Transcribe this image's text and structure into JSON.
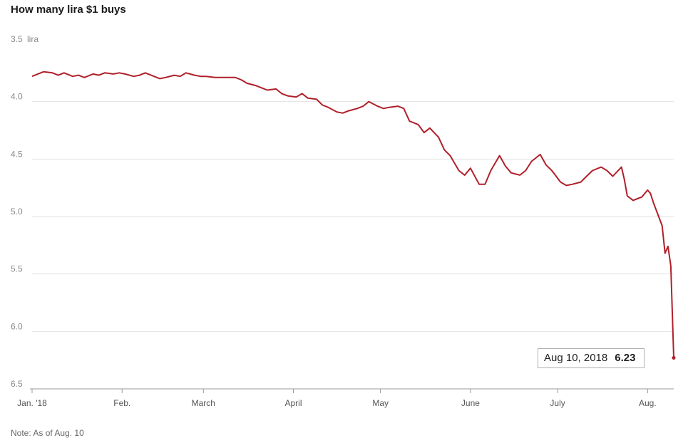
{
  "title": "How many lira $1 buys",
  "note": "Note: As of Aug. 10",
  "colors": {
    "line": "#b0202a",
    "grid": "#e2e2e2"
  },
  "callout": {
    "date": "Aug 10, 2018",
    "value": "6.23"
  },
  "chart_data": {
    "type": "line",
    "title": "How many lira $1 buys",
    "y_unit_label": "lira",
    "ylim": [
      3.5,
      6.5
    ],
    "y_inverted": true,
    "y_ticks": [
      {
        "value": 3.5,
        "label": "3.5"
      },
      {
        "value": 4.0,
        "label": "4.0"
      },
      {
        "value": 4.5,
        "label": "4.5"
      },
      {
        "value": 5.0,
        "label": "5.0"
      },
      {
        "value": 5.5,
        "label": "5.5"
      },
      {
        "value": 6.0,
        "label": "6.0"
      },
      {
        "value": 6.5,
        "label": "6.5"
      }
    ],
    "x_ticks": [
      {
        "date": "2018-01-01",
        "label": "Jan. '18"
      },
      {
        "date": "2018-02-01",
        "label": "Feb."
      },
      {
        "date": "2018-03-01",
        "label": "March"
      },
      {
        "date": "2018-04-01",
        "label": "April"
      },
      {
        "date": "2018-05-01",
        "label": "May"
      },
      {
        "date": "2018-06-01",
        "label": "June"
      },
      {
        "date": "2018-07-01",
        "label": "July"
      },
      {
        "date": "2018-08-01",
        "label": "Aug."
      }
    ],
    "xlim": [
      "2018-01-01",
      "2018-08-10"
    ],
    "grid": true,
    "series": [
      {
        "points": [
          [
            "2018-01-01",
            3.78
          ],
          [
            "2018-01-03",
            3.76
          ],
          [
            "2018-01-05",
            3.74
          ],
          [
            "2018-01-08",
            3.75
          ],
          [
            "2018-01-10",
            3.77
          ],
          [
            "2018-01-12",
            3.75
          ],
          [
            "2018-01-15",
            3.78
          ],
          [
            "2018-01-17",
            3.77
          ],
          [
            "2018-01-19",
            3.79
          ],
          [
            "2018-01-22",
            3.76
          ],
          [
            "2018-01-24",
            3.77
          ],
          [
            "2018-01-26",
            3.75
          ],
          [
            "2018-01-29",
            3.76
          ],
          [
            "2018-01-31",
            3.75
          ],
          [
            "2018-02-02",
            3.76
          ],
          [
            "2018-02-05",
            3.78
          ],
          [
            "2018-02-07",
            3.77
          ],
          [
            "2018-02-09",
            3.75
          ],
          [
            "2018-02-12",
            3.78
          ],
          [
            "2018-02-14",
            3.8
          ],
          [
            "2018-02-16",
            3.79
          ],
          [
            "2018-02-19",
            3.77
          ],
          [
            "2018-02-21",
            3.78
          ],
          [
            "2018-02-23",
            3.75
          ],
          [
            "2018-02-26",
            3.77
          ],
          [
            "2018-02-28",
            3.78
          ],
          [
            "2018-03-02",
            3.78
          ],
          [
            "2018-03-05",
            3.79
          ],
          [
            "2018-03-07",
            3.79
          ],
          [
            "2018-03-09",
            3.79
          ],
          [
            "2018-03-12",
            3.79
          ],
          [
            "2018-03-14",
            3.81
          ],
          [
            "2018-03-16",
            3.84
          ],
          [
            "2018-03-19",
            3.86
          ],
          [
            "2018-03-21",
            3.88
          ],
          [
            "2018-03-23",
            3.9
          ],
          [
            "2018-03-26",
            3.89
          ],
          [
            "2018-03-28",
            3.93
          ],
          [
            "2018-03-30",
            3.95
          ],
          [
            "2018-04-02",
            3.96
          ],
          [
            "2018-04-04",
            3.93
          ],
          [
            "2018-04-06",
            3.97
          ],
          [
            "2018-04-09",
            3.98
          ],
          [
            "2018-04-11",
            4.03
          ],
          [
            "2018-04-13",
            4.05
          ],
          [
            "2018-04-16",
            4.09
          ],
          [
            "2018-04-18",
            4.1
          ],
          [
            "2018-04-20",
            4.08
          ],
          [
            "2018-04-23",
            4.06
          ],
          [
            "2018-04-25",
            4.04
          ],
          [
            "2018-04-27",
            4.0
          ],
          [
            "2018-04-30",
            4.04
          ],
          [
            "2018-05-02",
            4.06
          ],
          [
            "2018-05-04",
            4.05
          ],
          [
            "2018-05-07",
            4.04
          ],
          [
            "2018-05-09",
            4.06
          ],
          [
            "2018-05-11",
            4.17
          ],
          [
            "2018-05-14",
            4.2
          ],
          [
            "2018-05-16",
            4.27
          ],
          [
            "2018-05-18",
            4.23
          ],
          [
            "2018-05-21",
            4.31
          ],
          [
            "2018-05-23",
            4.42
          ],
          [
            "2018-05-25",
            4.47
          ],
          [
            "2018-05-28",
            4.6
          ],
          [
            "2018-05-30",
            4.64
          ],
          [
            "2018-06-01",
            4.58
          ],
          [
            "2018-06-04",
            4.72
          ],
          [
            "2018-06-06",
            4.72
          ],
          [
            "2018-06-08",
            4.6
          ],
          [
            "2018-06-11",
            4.47
          ],
          [
            "2018-06-13",
            4.56
          ],
          [
            "2018-06-15",
            4.62
          ],
          [
            "2018-06-18",
            4.64
          ],
          [
            "2018-06-20",
            4.6
          ],
          [
            "2018-06-22",
            4.52
          ],
          [
            "2018-06-25",
            4.46
          ],
          [
            "2018-06-27",
            4.55
          ],
          [
            "2018-06-29",
            4.6
          ],
          [
            "2018-07-02",
            4.7
          ],
          [
            "2018-07-04",
            4.73
          ],
          [
            "2018-07-06",
            4.72
          ],
          [
            "2018-07-09",
            4.7
          ],
          [
            "2018-07-11",
            4.65
          ],
          [
            "2018-07-13",
            4.6
          ],
          [
            "2018-07-16",
            4.57
          ],
          [
            "2018-07-18",
            4.6
          ],
          [
            "2018-07-20",
            4.65
          ],
          [
            "2018-07-23",
            4.57
          ],
          [
            "2018-07-24",
            4.68
          ],
          [
            "2018-07-25",
            4.82
          ],
          [
            "2018-07-27",
            4.86
          ],
          [
            "2018-07-30",
            4.83
          ],
          [
            "2018-08-01",
            4.77
          ],
          [
            "2018-08-02",
            4.8
          ],
          [
            "2018-08-03",
            4.88
          ],
          [
            "2018-08-06",
            5.08
          ],
          [
            "2018-08-07",
            5.32
          ],
          [
            "2018-08-08",
            5.26
          ],
          [
            "2018-08-09",
            5.43
          ],
          [
            "2018-08-10",
            6.23
          ]
        ]
      }
    ]
  }
}
